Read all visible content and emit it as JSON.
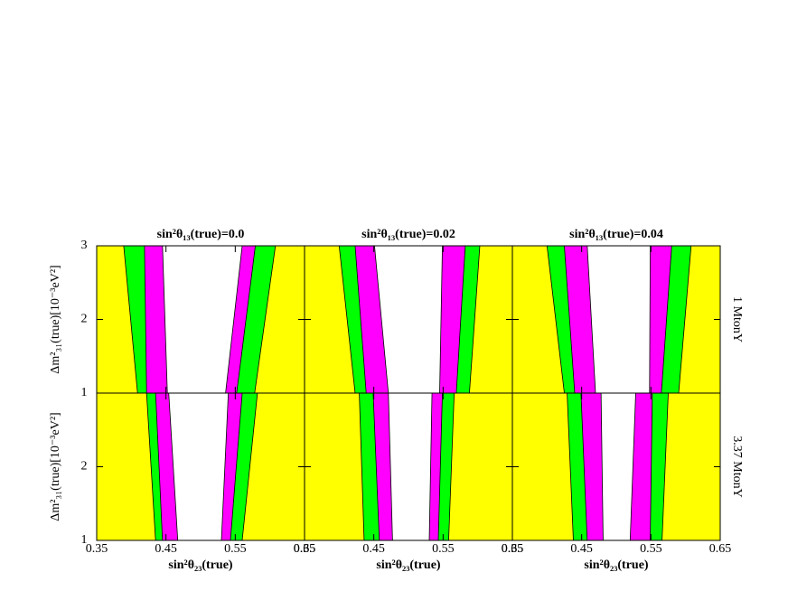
{
  "chart_data": [
    {
      "type": "band",
      "title": "sin²θ₁₃(true)=0.0",
      "ylabel": "Δm²₃₁(true)[10⁻³eV²]",
      "xlim": [
        0.35,
        0.65
      ],
      "ylim": [
        1,
        3
      ],
      "xticks": [
        0.35,
        0.45,
        0.55,
        0.65
      ],
      "yticks": [
        1,
        2,
        3
      ],
      "background": "#ffff00",
      "bands": [
        {
          "color": "#00ff00",
          "left": [
            0.409,
            0.389
          ],
          "right": [
            0.578,
            0.608
          ]
        },
        {
          "color": "#ff00ff",
          "left": [
            0.422,
            0.419
          ],
          "right": [
            0.552,
            0.579
          ]
        },
        {
          "color": "#ffffff",
          "left": [
            0.452,
            0.445
          ],
          "right": [
            0.536,
            0.56
          ]
        }
      ]
    },
    {
      "type": "band",
      "title": "sin²θ₁₃(true)=0.02",
      "xlim": [
        0.35,
        0.65
      ],
      "ylim": [
        1,
        3
      ],
      "xticks": [
        0.35,
        0.45,
        0.55,
        0.65
      ],
      "yticks": [
        1,
        2,
        3
      ],
      "background": "#ffff00",
      "bands": [
        {
          "color": "#00ff00",
          "left": [
            0.423,
            0.4
          ],
          "right": [
            0.588,
            0.603
          ]
        },
        {
          "color": "#ff00ff",
          "left": [
            0.439,
            0.423
          ],
          "right": [
            0.569,
            0.582
          ]
        },
        {
          "color": "#ffffff",
          "left": [
            0.471,
            0.451
          ],
          "right": [
            0.545,
            0.549
          ]
        }
      ]
    },
    {
      "type": "band",
      "title": "sin²θ₁₃(true)=0.04",
      "row_label": "1 MtonY",
      "xlim": [
        0.35,
        0.65
      ],
      "ylim": [
        1,
        3
      ],
      "xticks": [
        0.35,
        0.45,
        0.55,
        0.65
      ],
      "yticks": [
        1,
        2,
        3
      ],
      "background": "#ffff00",
      "bands": [
        {
          "color": "#00ff00",
          "left": [
            0.425,
            0.4
          ],
          "right": [
            0.59,
            0.608
          ]
        },
        {
          "color": "#ff00ff",
          "left": [
            0.44,
            0.425
          ],
          "right": [
            0.565,
            0.58
          ]
        },
        {
          "color": "#ffffff",
          "left": [
            0.47,
            0.458
          ],
          "right": [
            0.548,
            0.549
          ]
        }
      ]
    },
    {
      "type": "band",
      "xlabel": "sin²θ₂₃(true)",
      "ylabel": "Δm²₃₁(true)[10⁻³eV²]",
      "xlim": [
        0.35,
        0.65
      ],
      "ylim": [
        1,
        3
      ],
      "xticks": [
        0.35,
        0.45,
        0.55,
        0.65
      ],
      "yticks": [
        1,
        2
      ],
      "background": "#ffff00",
      "bands": [
        {
          "color": "#00ff00",
          "left": [
            0.435,
            0.422
          ],
          "right": [
            0.56,
            0.582
          ]
        },
        {
          "color": "#ff00ff",
          "left": [
            0.445,
            0.435
          ],
          "right": [
            0.543,
            0.56
          ]
        },
        {
          "color": "#ffffff",
          "left": [
            0.467,
            0.454
          ],
          "right": [
            0.53,
            0.54
          ]
        }
      ]
    },
    {
      "type": "band",
      "xlabel": "sin²θ₂₃(true)",
      "xlim": [
        0.35,
        0.65
      ],
      "ylim": [
        1,
        3
      ],
      "xticks": [
        0.35,
        0.45,
        0.55,
        0.65
      ],
      "yticks": [
        1,
        2
      ],
      "background": "#ffff00",
      "bands": [
        {
          "color": "#00ff00",
          "left": [
            0.436,
            0.429
          ],
          "right": [
            0.558,
            0.566
          ]
        },
        {
          "color": "#ff00ff",
          "left": [
            0.458,
            0.449
          ],
          "right": [
            0.543,
            0.549
          ]
        },
        {
          "color": "#ffffff",
          "left": [
            0.477,
            0.471
          ],
          "right": [
            0.53,
            0.534
          ]
        }
      ]
    },
    {
      "type": "band",
      "xlabel": "sin²θ₂₃(true)",
      "row_label": "3.37 MtonY",
      "xlim": [
        0.35,
        0.65
      ],
      "ylim": [
        1,
        3
      ],
      "xticks": [
        0.35,
        0.45,
        0.55,
        0.65
      ],
      "yticks": [
        1,
        2
      ],
      "background": "#ffff00",
      "bands": [
        {
          "color": "#00ff00",
          "left": [
            0.438,
            0.429
          ],
          "right": [
            0.566,
            0.575
          ]
        },
        {
          "color": "#ff00ff",
          "left": [
            0.458,
            0.449
          ],
          "right": [
            0.549,
            0.552
          ]
        },
        {
          "color": "#ffffff",
          "left": [
            0.481,
            0.478
          ],
          "right": [
            0.52,
            0.528
          ]
        }
      ]
    }
  ]
}
